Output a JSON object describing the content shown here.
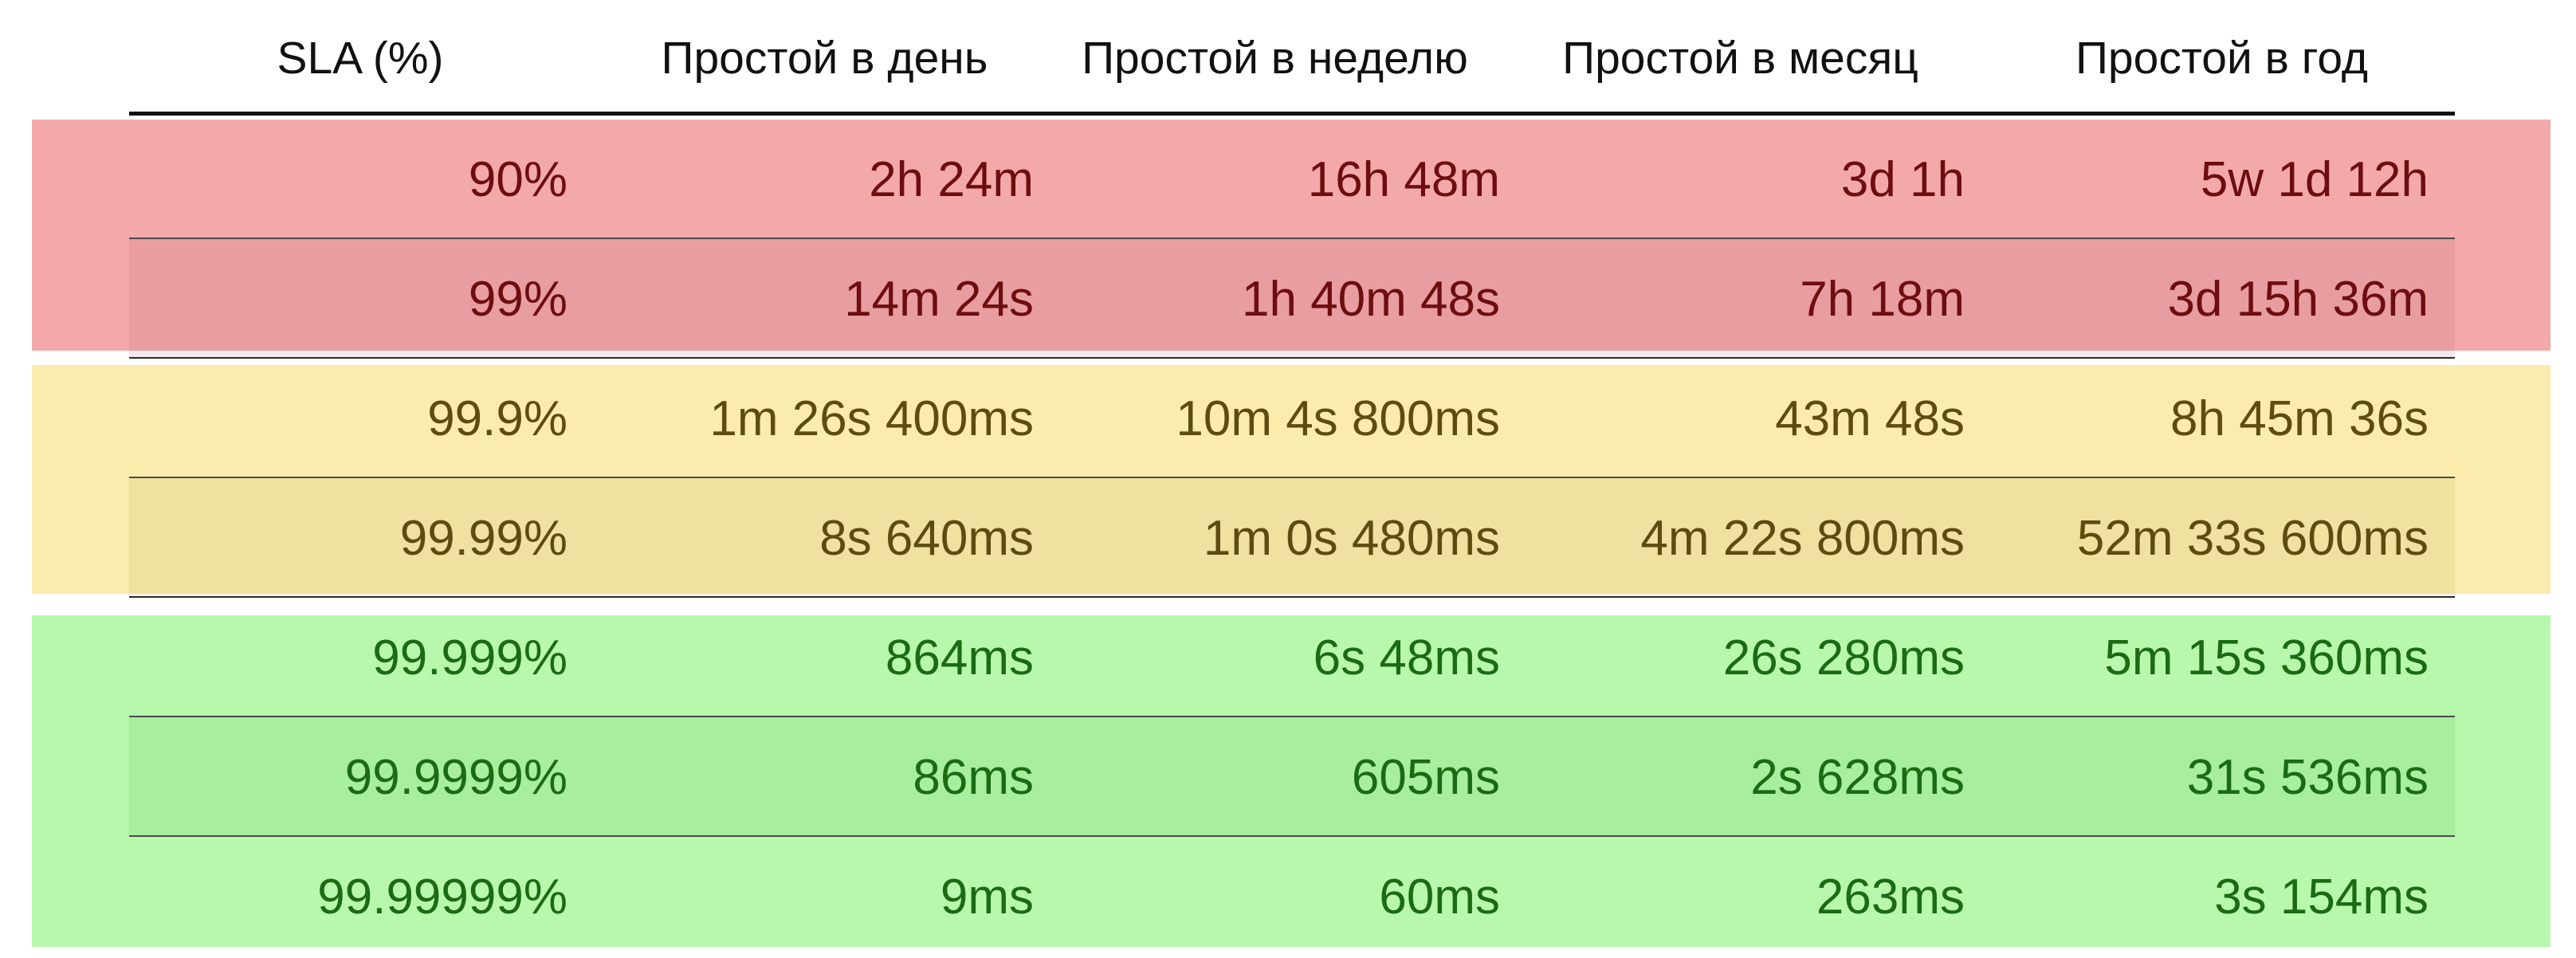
{
  "table": {
    "headers": [
      "SLA (%)",
      "Простой в день",
      "Простой в неделю",
      "Простой в месяц",
      "Простой в год"
    ],
    "groups": [
      {
        "tier": "red",
        "band_color": "#f3a9a9",
        "text_color": "#6e0d10",
        "rows": [
          [
            "90%",
            "2h 24m",
            "16h 48m",
            "3d 1h",
            "5w 1d 12h"
          ],
          [
            "99%",
            "14m 24s",
            "1h 40m 48s",
            "7h 18m",
            "3d 15h 36m"
          ]
        ]
      },
      {
        "tier": "yellow",
        "band_color": "#fbecae",
        "text_color": "#5d4b10",
        "rows": [
          [
            "99.9%",
            "1m 26s 400ms",
            "10m 4s 800ms",
            "43m 48s",
            "8h 45m 36s"
          ],
          [
            "99.99%",
            "8s 640ms",
            "1m 0s 480ms",
            "4m 22s 800ms",
            "52m 33s 600ms"
          ]
        ]
      },
      {
        "tier": "green",
        "band_color": "#b8f8ad",
        "text_color": "#1a6b12",
        "rows": [
          [
            "99.999%",
            "864ms",
            "6s 48ms",
            "26s 280ms",
            "5m 15s 360ms"
          ],
          [
            "99.9999%",
            "86ms",
            "605ms",
            "2s 628ms",
            "31s 536ms"
          ],
          [
            "99.99999%",
            "9ms",
            "60ms",
            "263ms",
            "3s 154ms"
          ]
        ]
      }
    ]
  }
}
